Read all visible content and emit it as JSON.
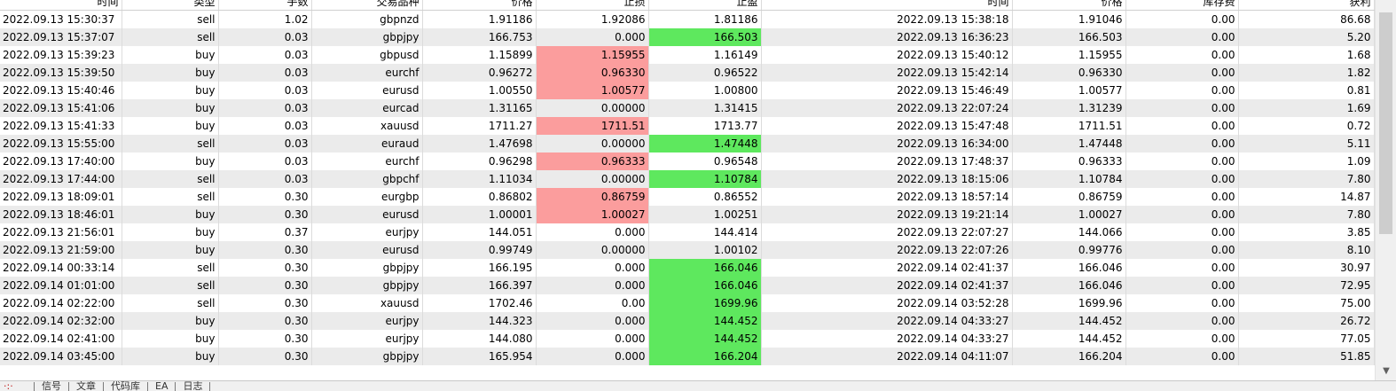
{
  "columns": [
    "时间",
    "类型",
    "手数",
    "交易品种",
    "价格",
    "止损",
    "止盈",
    "时间",
    "价格",
    "库存费",
    "获利"
  ],
  "rows": [
    {
      "open_time": "2022.09.13 15:30:37",
      "type": "sell",
      "lots": "1.02",
      "symbol": "gbpnzd",
      "open_price": "1.91186",
      "sl": "1.92086",
      "tp": "1.81186",
      "close_time": "2022.09.13 15:38:18",
      "close_price": "1.91046",
      "swap": "0.00",
      "profit": "86.68",
      "sl_hl": "",
      "tp_hl": ""
    },
    {
      "open_time": "2022.09.13 15:37:07",
      "type": "sell",
      "lots": "0.03",
      "symbol": "gbpjpy",
      "open_price": "166.753",
      "sl": "0.000",
      "tp": "166.503",
      "close_time": "2022.09.13 16:36:23",
      "close_price": "166.503",
      "swap": "0.00",
      "profit": "5.20",
      "sl_hl": "",
      "tp_hl": "green"
    },
    {
      "open_time": "2022.09.13 15:39:23",
      "type": "buy",
      "lots": "0.03",
      "symbol": "gbpusd",
      "open_price": "1.15899",
      "sl": "1.15955",
      "tp": "1.16149",
      "close_time": "2022.09.13 15:40:12",
      "close_price": "1.15955",
      "swap": "0.00",
      "profit": "1.68",
      "sl_hl": "red",
      "tp_hl": ""
    },
    {
      "open_time": "2022.09.13 15:39:50",
      "type": "buy",
      "lots": "0.03",
      "symbol": "eurchf",
      "open_price": "0.96272",
      "sl": "0.96330",
      "tp": "0.96522",
      "close_time": "2022.09.13 15:42:14",
      "close_price": "0.96330",
      "swap": "0.00",
      "profit": "1.82",
      "sl_hl": "red",
      "tp_hl": ""
    },
    {
      "open_time": "2022.09.13 15:40:46",
      "type": "buy",
      "lots": "0.03",
      "symbol": "eurusd",
      "open_price": "1.00550",
      "sl": "1.00577",
      "tp": "1.00800",
      "close_time": "2022.09.13 15:46:49",
      "close_price": "1.00577",
      "swap": "0.00",
      "profit": "0.81",
      "sl_hl": "red",
      "tp_hl": ""
    },
    {
      "open_time": "2022.09.13 15:41:06",
      "type": "buy",
      "lots": "0.03",
      "symbol": "eurcad",
      "open_price": "1.31165",
      "sl": "0.00000",
      "tp": "1.31415",
      "close_time": "2022.09.13 22:07:24",
      "close_price": "1.31239",
      "swap": "0.00",
      "profit": "1.69",
      "sl_hl": "",
      "tp_hl": ""
    },
    {
      "open_time": "2022.09.13 15:41:33",
      "type": "buy",
      "lots": "0.03",
      "symbol": "xauusd",
      "open_price": "1711.27",
      "sl": "1711.51",
      "tp": "1713.77",
      "close_time": "2022.09.13 15:47:48",
      "close_price": "1711.51",
      "swap": "0.00",
      "profit": "0.72",
      "sl_hl": "red",
      "tp_hl": ""
    },
    {
      "open_time": "2022.09.13 15:55:00",
      "type": "sell",
      "lots": "0.03",
      "symbol": "euraud",
      "open_price": "1.47698",
      "sl": "0.00000",
      "tp": "1.47448",
      "close_time": "2022.09.13 16:34:00",
      "close_price": "1.47448",
      "swap": "0.00",
      "profit": "5.11",
      "sl_hl": "",
      "tp_hl": "green"
    },
    {
      "open_time": "2022.09.13 17:40:00",
      "type": "buy",
      "lots": "0.03",
      "symbol": "eurchf",
      "open_price": "0.96298",
      "sl": "0.96333",
      "tp": "0.96548",
      "close_time": "2022.09.13 17:48:37",
      "close_price": "0.96333",
      "swap": "0.00",
      "profit": "1.09",
      "sl_hl": "red",
      "tp_hl": ""
    },
    {
      "open_time": "2022.09.13 17:44:00",
      "type": "sell",
      "lots": "0.03",
      "symbol": "gbpchf",
      "open_price": "1.11034",
      "sl": "0.00000",
      "tp": "1.10784",
      "close_time": "2022.09.13 18:15:06",
      "close_price": "1.10784",
      "swap": "0.00",
      "profit": "7.80",
      "sl_hl": "",
      "tp_hl": "green"
    },
    {
      "open_time": "2022.09.13 18:09:01",
      "type": "sell",
      "lots": "0.30",
      "symbol": "eurgbp",
      "open_price": "0.86802",
      "sl": "0.86759",
      "tp": "0.86552",
      "close_time": "2022.09.13 18:57:14",
      "close_price": "0.86759",
      "swap": "0.00",
      "profit": "14.87",
      "sl_hl": "red",
      "tp_hl": ""
    },
    {
      "open_time": "2022.09.13 18:46:01",
      "type": "buy",
      "lots": "0.30",
      "symbol": "eurusd",
      "open_price": "1.00001",
      "sl": "1.00027",
      "tp": "1.00251",
      "close_time": "2022.09.13 19:21:14",
      "close_price": "1.00027",
      "swap": "0.00",
      "profit": "7.80",
      "sl_hl": "red",
      "tp_hl": ""
    },
    {
      "open_time": "2022.09.13 21:56:01",
      "type": "buy",
      "lots": "0.37",
      "symbol": "eurjpy",
      "open_price": "144.051",
      "sl": "0.000",
      "tp": "144.414",
      "close_time": "2022.09.13 22:07:27",
      "close_price": "144.066",
      "swap": "0.00",
      "profit": "3.85",
      "sl_hl": "",
      "tp_hl": ""
    },
    {
      "open_time": "2022.09.13 21:59:00",
      "type": "buy",
      "lots": "0.30",
      "symbol": "eurusd",
      "open_price": "0.99749",
      "sl": "0.00000",
      "tp": "1.00102",
      "close_time": "2022.09.13 22:07:26",
      "close_price": "0.99776",
      "swap": "0.00",
      "profit": "8.10",
      "sl_hl": "",
      "tp_hl": ""
    },
    {
      "open_time": "2022.09.14 00:33:14",
      "type": "sell",
      "lots": "0.30",
      "symbol": "gbpjpy",
      "open_price": "166.195",
      "sl": "0.000",
      "tp": "166.046",
      "close_time": "2022.09.14 02:41:37",
      "close_price": "166.046",
      "swap": "0.00",
      "profit": "30.97",
      "sl_hl": "",
      "tp_hl": "green"
    },
    {
      "open_time": "2022.09.14 01:01:00",
      "type": "sell",
      "lots": "0.30",
      "symbol": "gbpjpy",
      "open_price": "166.397",
      "sl": "0.000",
      "tp": "166.046",
      "close_time": "2022.09.14 02:41:37",
      "close_price": "166.046",
      "swap": "0.00",
      "profit": "72.95",
      "sl_hl": "",
      "tp_hl": "green"
    },
    {
      "open_time": "2022.09.14 02:22:00",
      "type": "sell",
      "lots": "0.30",
      "symbol": "xauusd",
      "open_price": "1702.46",
      "sl": "0.00",
      "tp": "1699.96",
      "close_time": "2022.09.14 03:52:28",
      "close_price": "1699.96",
      "swap": "0.00",
      "profit": "75.00",
      "sl_hl": "",
      "tp_hl": "green"
    },
    {
      "open_time": "2022.09.14 02:32:00",
      "type": "buy",
      "lots": "0.30",
      "symbol": "eurjpy",
      "open_price": "144.323",
      "sl": "0.000",
      "tp": "144.452",
      "close_time": "2022.09.14 04:33:27",
      "close_price": "144.452",
      "swap": "0.00",
      "profit": "26.72",
      "sl_hl": "",
      "tp_hl": "green"
    },
    {
      "open_time": "2022.09.14 02:41:00",
      "type": "buy",
      "lots": "0.30",
      "symbol": "eurjpy",
      "open_price": "144.080",
      "sl": "0.000",
      "tp": "144.452",
      "close_time": "2022.09.14 04:33:27",
      "close_price": "144.452",
      "swap": "0.00",
      "profit": "77.05",
      "sl_hl": "",
      "tp_hl": "green"
    },
    {
      "open_time": "2022.09.14 03:45:00",
      "type": "buy",
      "lots": "0.30",
      "symbol": "gbpjpy",
      "open_price": "165.954",
      "sl": "0.000",
      "tp": "166.204",
      "close_time": "2022.09.14 04:11:07",
      "close_price": "166.204",
      "swap": "0.00",
      "profit": "51.85",
      "sl_hl": "",
      "tp_hl": "green"
    }
  ],
  "bottom_tabs": [
    "信号",
    "文章",
    "代码库",
    "EA",
    "日志"
  ],
  "colors": {
    "row_alt": "#ebebeb",
    "stop_loss_hit": "#fb9d9d",
    "take_profit_hit": "#5ee85e"
  },
  "icons": {
    "scroll_down": "triangle-down-icon"
  }
}
